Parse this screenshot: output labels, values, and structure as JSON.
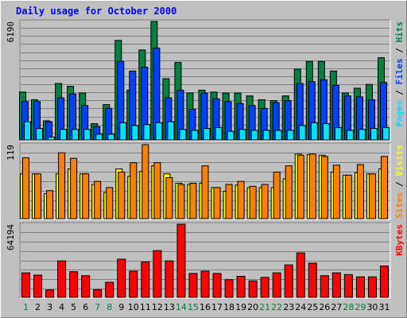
{
  "title": "Daily usage for October 2000",
  "colors": {
    "hits": "#008040",
    "files": "#0040ff",
    "pages": "#00e0ff",
    "visits": "#ffff00",
    "sites": "#ff8000",
    "kbytes": "#ff0000",
    "weekday_label": "#000000",
    "weekend_label": "#008040"
  },
  "chart_data": [
    {
      "type": "bar",
      "name": "hits-files-pages",
      "ymax_label": "6190",
      "ylim": [
        0,
        6190
      ],
      "right_label_parts": [
        {
          "text": "Pages",
          "color": "#00e0ff"
        },
        {
          "text": " / ",
          "color": "#000000"
        },
        {
          "text": "Files",
          "color": "#0040ff"
        },
        {
          "text": " / ",
          "color": "#000000"
        },
        {
          "text": "Hits",
          "color": "#008040"
        }
      ],
      "series": [
        {
          "name": "Hits",
          "values": [
            2500,
            2100,
            1000,
            2950,
            2800,
            2450,
            850,
            1850,
            5200,
            2600,
            4700,
            6190,
            3200,
            4050,
            2450,
            2600,
            2500,
            2450,
            2450,
            2300,
            2100,
            2050,
            2300,
            3700,
            4100,
            4100,
            3600,
            2450,
            2700,
            2900,
            4300
          ]
        },
        {
          "name": "Files",
          "values": [
            2000,
            2000,
            950,
            2200,
            2400,
            1800,
            700,
            1650,
            4100,
            3600,
            3800,
            4800,
            2200,
            2600,
            1600,
            2450,
            2150,
            2000,
            1900,
            1800,
            1650,
            1950,
            2050,
            2950,
            3050,
            3150,
            2850,
            2300,
            2250,
            2100,
            3000
          ]
        },
        {
          "name": "Pages",
          "values": [
            950,
            600,
            150,
            550,
            550,
            550,
            300,
            300,
            900,
            750,
            800,
            900,
            950,
            550,
            500,
            600,
            650,
            450,
            550,
            500,
            500,
            500,
            500,
            750,
            900,
            850,
            650,
            500,
            550,
            600,
            650
          ]
        }
      ]
    },
    {
      "type": "bar",
      "name": "visits-sites",
      "ymax_label": "119",
      "ylim": [
        0,
        119
      ],
      "right_label_parts": [
        {
          "text": "Sites",
          "color": "#ff8000"
        },
        {
          "text": " / ",
          "color": "#000000"
        },
        {
          "text": "Visits",
          "color": "#ffff00"
        }
      ],
      "series": [
        {
          "name": "Visits",
          "values": [
            72,
            72,
            40,
            72,
            80,
            72,
            55,
            42,
            80,
            68,
            76,
            85,
            72,
            57,
            55,
            57,
            50,
            44,
            54,
            50,
            50,
            50,
            64,
            104,
            103,
            102,
            75,
            70,
            74,
            72,
            80
          ]
        },
        {
          "name": "Sites",
          "values": [
            98,
            72,
            45,
            106,
            97,
            72,
            60,
            50,
            75,
            90,
            119,
            90,
            66,
            55,
            57,
            85,
            50,
            55,
            60,
            52,
            55,
            75,
            85,
            102,
            104,
            100,
            86,
            70,
            87,
            72,
            100
          ]
        }
      ]
    },
    {
      "type": "bar",
      "name": "kbytes",
      "ymax_label": "64194",
      "ylim": [
        0,
        64194
      ],
      "right_label_parts": [
        {
          "text": "KBytes",
          "color": "#ff0000"
        }
      ],
      "series": [
        {
          "name": "KBytes",
          "values": [
            21500,
            19500,
            6500,
            32000,
            22500,
            19000,
            6800,
            13200,
            33500,
            23000,
            31000,
            41000,
            32000,
            64194,
            21000,
            23000,
            21000,
            15500,
            18500,
            14500,
            17500,
            21500,
            28500,
            39000,
            30000,
            19000,
            21500,
            20000,
            18000,
            18000,
            27500
          ]
        }
      ]
    }
  ],
  "x_axis": {
    "days": [
      "1",
      "2",
      "3",
      "4",
      "5",
      "6",
      "7",
      "8",
      "9",
      "10",
      "11",
      "12",
      "13",
      "14",
      "15",
      "16",
      "17",
      "18",
      "19",
      "20",
      "21",
      "22",
      "23",
      "24",
      "25",
      "26",
      "27",
      "28",
      "29",
      "30",
      "31"
    ],
    "weekend_days": [
      "1",
      "7",
      "8",
      "14",
      "15",
      "21",
      "22",
      "28",
      "29"
    ]
  }
}
